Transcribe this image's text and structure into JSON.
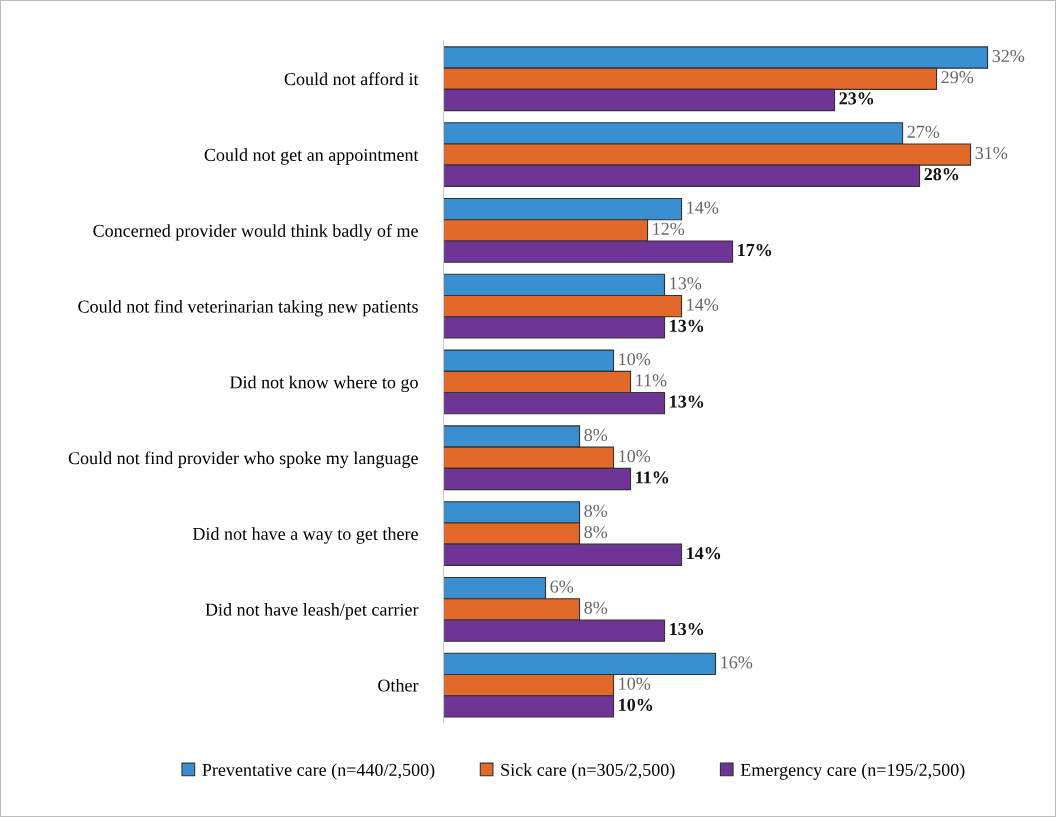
{
  "chart_data": {
    "type": "bar",
    "orientation": "horizontal",
    "categories": [
      "Could not afford it",
      "Could not get an appointment",
      "Concerned provider would think badly of me",
      "Could not find veterinarian taking new patients",
      "Did not know where to go",
      "Could not find provider who spoke my language",
      "Did not have a way to get there",
      "Did not have leash/pet carrier",
      "Other"
    ],
    "series": [
      {
        "name": "Preventative care (n=440/2,500)",
        "color": "#3a8fd0",
        "values": [
          32,
          27,
          14,
          13,
          10,
          8,
          8,
          6,
          16
        ],
        "value_labels": [
          "32%",
          "27%",
          "14%",
          "13%",
          "10%",
          "8%",
          "8%",
          "6%",
          "16%"
        ]
      },
      {
        "name": "Sick care (n=305/2,500)",
        "color": "#e2692a",
        "values": [
          29,
          31,
          12,
          14,
          11,
          10,
          8,
          8,
          10
        ],
        "value_labels": [
          "29%",
          "31%",
          "12%",
          "14%",
          "11%",
          "10%",
          "8%",
          "8%",
          "10%"
        ]
      },
      {
        "name": "Emergency care (n=195/2,500)",
        "color": "#6f3596",
        "values": [
          23,
          28,
          17,
          13,
          13,
          11,
          14,
          13,
          10
        ],
        "value_labels": [
          "23%",
          "28%",
          "17%",
          "13%",
          "13%",
          "11%",
          "14%",
          "13%",
          "10%"
        ]
      }
    ],
    "legend": "bottom",
    "grid": false
  }
}
